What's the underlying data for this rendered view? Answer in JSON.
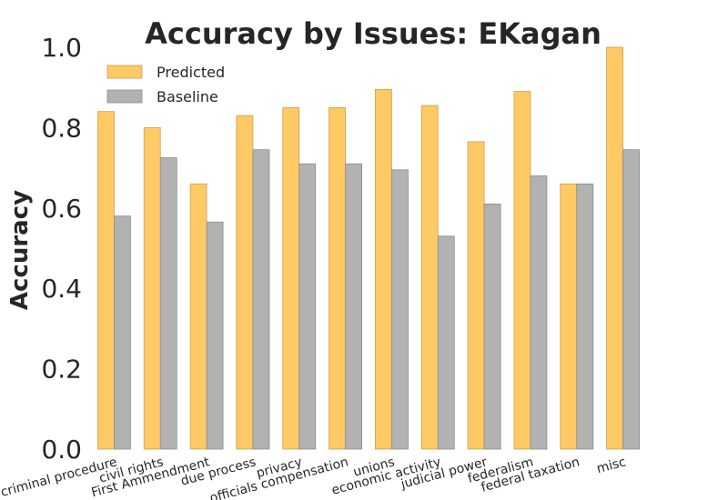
{
  "chart_data": {
    "type": "bar",
    "title": "Accuracy by Issues: EKagan",
    "xlabel": "",
    "ylabel": "Accuracy",
    "ylim": [
      0.0,
      1.0
    ],
    "yticks": [
      "0.0",
      "0.2",
      "0.4",
      "0.6",
      "0.8",
      "1.0"
    ],
    "grid": false,
    "legend_position": "top-left",
    "categories": [
      "criminal procedure",
      "civil rights",
      "First Ammendment",
      "due process",
      "privacy",
      "officials compensation",
      "unions",
      "economic activity",
      "judicial power",
      "federalism",
      "federal taxation",
      "misc"
    ],
    "series": [
      {
        "name": "Predicted",
        "color": "#ffc966",
        "edge": "#c9a14f",
        "values": [
          0.84,
          0.8,
          0.66,
          0.83,
          0.85,
          0.85,
          0.895,
          0.855,
          0.765,
          0.89,
          0.66,
          1.0
        ]
      },
      {
        "name": "Baseline",
        "color": "#b2b2b2",
        "edge": "#8c8c8c",
        "values": [
          0.58,
          0.725,
          0.565,
          0.745,
          0.71,
          0.71,
          0.695,
          0.53,
          0.61,
          0.68,
          0.66,
          0.745
        ]
      }
    ]
  }
}
